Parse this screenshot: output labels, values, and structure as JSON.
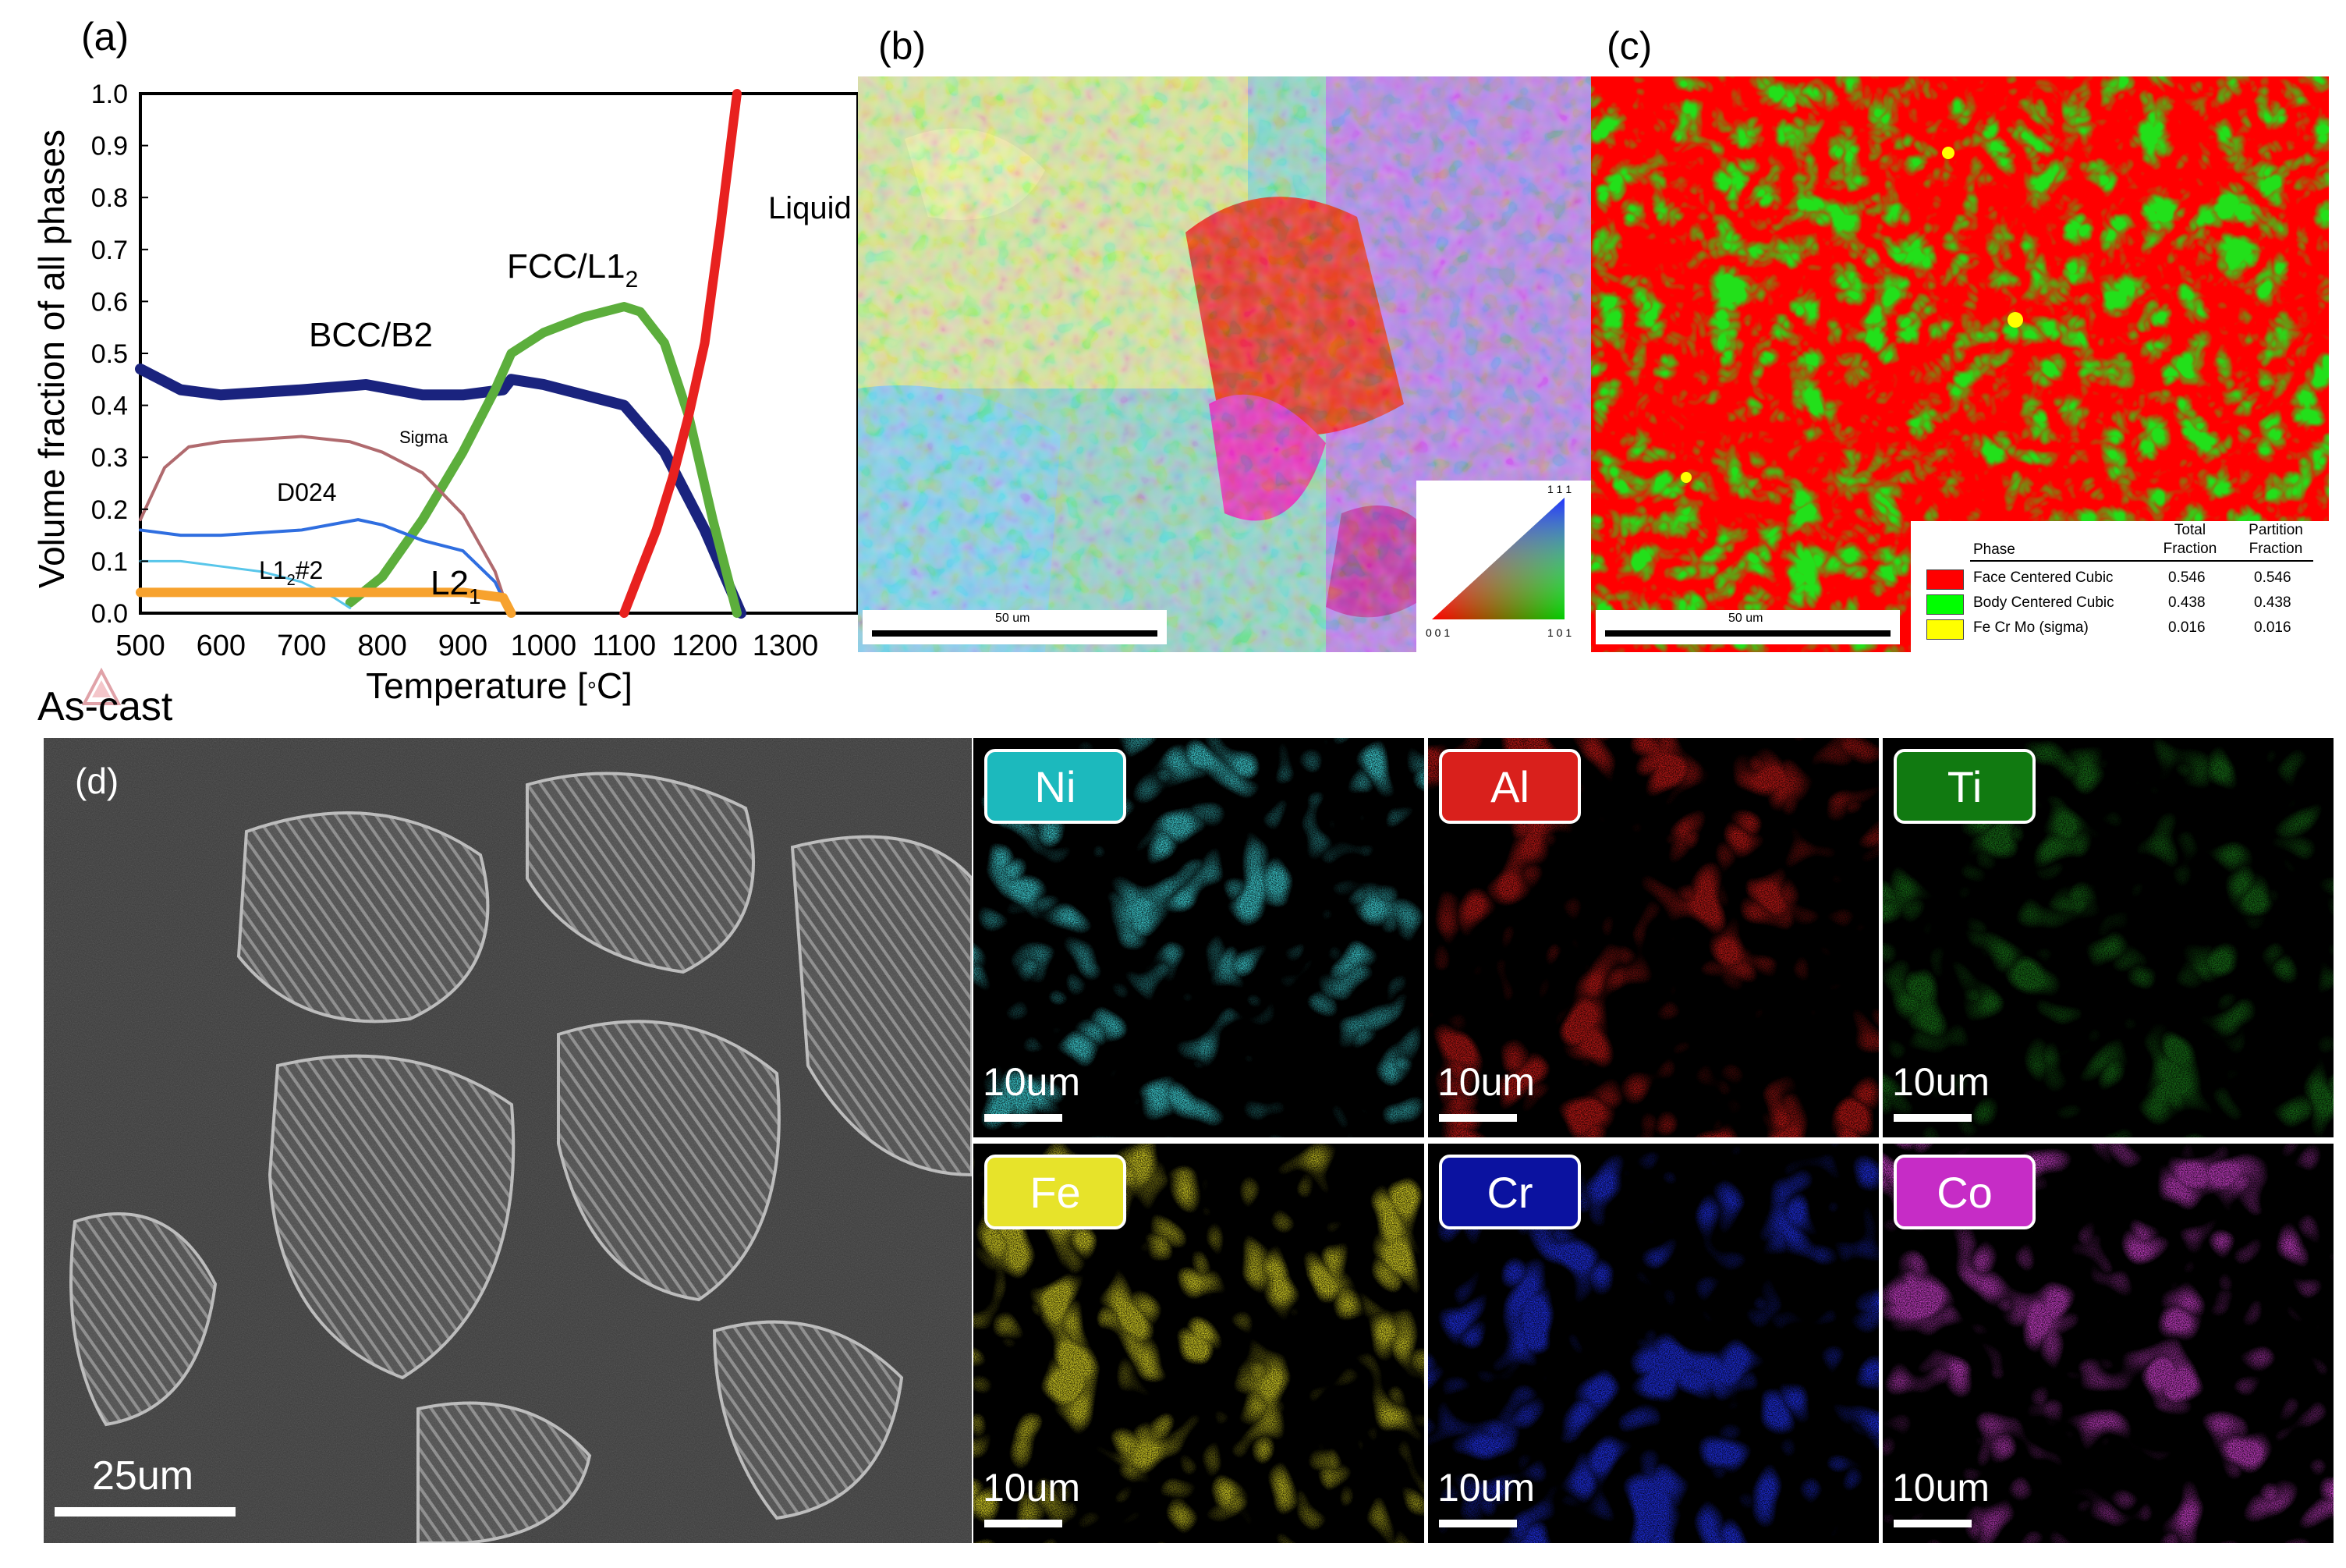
{
  "panel_a": {
    "label": "(a)",
    "chart_data": {
      "type": "line",
      "xlabel": "Temperature [°C]",
      "ylabel": "Volume fraction of all phases",
      "xlim": [
        500,
        1390
      ],
      "ylim": [
        0,
        1.0
      ],
      "xticks": [
        "500",
        "600",
        "700",
        "800",
        "900",
        "1000",
        "1100",
        "1200",
        "1300"
      ],
      "yticks": [
        "0.0",
        "0.1",
        "0.2",
        "0.3",
        "0.4",
        "0.5",
        "0.6",
        "0.7",
        "0.8",
        "0.9",
        "1.0"
      ],
      "series": [
        {
          "name": "BCC/B2",
          "color": "#1a237e",
          "x": [
            500,
            550,
            600,
            700,
            780,
            850,
            900,
            950,
            960,
            1000,
            1050,
            1100,
            1150,
            1200,
            1245
          ],
          "y": [
            0.47,
            0.43,
            0.42,
            0.43,
            0.44,
            0.42,
            0.42,
            0.43,
            0.45,
            0.44,
            0.42,
            0.4,
            0.31,
            0.16,
            0.0
          ]
        },
        {
          "name": "FCC/L1₂",
          "color": "#5cae3c",
          "x": [
            760,
            800,
            850,
            900,
            940,
            960,
            1000,
            1050,
            1100,
            1120,
            1150,
            1180,
            1210,
            1240
          ],
          "y": [
            0.02,
            0.07,
            0.18,
            0.31,
            0.43,
            0.5,
            0.54,
            0.57,
            0.59,
            0.58,
            0.52,
            0.38,
            0.18,
            0.0
          ]
        },
        {
          "name": "Liquid",
          "color": "#e8211f",
          "x": [
            1100,
            1120,
            1140,
            1160,
            1180,
            1200,
            1220,
            1240
          ],
          "y": [
            0.0,
            0.08,
            0.16,
            0.26,
            0.38,
            0.52,
            0.75,
            1.0
          ]
        },
        {
          "name": "Sigma",
          "color": "#b06a6e",
          "x": [
            500,
            530,
            560,
            600,
            700,
            760,
            800,
            850,
            900,
            940,
            955
          ],
          "y": [
            0.18,
            0.28,
            0.32,
            0.33,
            0.34,
            0.33,
            0.31,
            0.27,
            0.19,
            0.08,
            0.01
          ]
        },
        {
          "name": "D024",
          "color": "#2f6ee0",
          "x": [
            500,
            550,
            600,
            700,
            770,
            800,
            850,
            900,
            940,
            955
          ],
          "y": [
            0.16,
            0.15,
            0.15,
            0.16,
            0.18,
            0.17,
            0.14,
            0.12,
            0.06,
            0.01
          ]
        },
        {
          "name": "L1₂#2",
          "color": "#58c6ea",
          "x": [
            500,
            550,
            600,
            650,
            700,
            740,
            760
          ],
          "y": [
            0.1,
            0.1,
            0.09,
            0.08,
            0.06,
            0.03,
            0.01
          ]
        },
        {
          "name": "L2₁",
          "color": "#f7a22e",
          "x": [
            500,
            600,
            700,
            800,
            900,
            950,
            960
          ],
          "y": [
            0.04,
            0.04,
            0.04,
            0.04,
            0.04,
            0.03,
            0.0
          ]
        }
      ],
      "annotations": {
        "bcc": "BCC/B2",
        "fcc": "FCC/L1",
        "fcc_sub": "2",
        "liquid": "Liquid",
        "sigma": "Sigma",
        "d024": "D024",
        "l12": "L1",
        "l12_sub": "2",
        "l12_suffix": "#2",
        "l21": "L2",
        "l21_sub": "1"
      }
    }
  },
  "panel_b": {
    "label": "(b)",
    "scale_text": "50 um",
    "ipf": {
      "top": "1 1 1",
      "left": "0 0 1",
      "right": "1 0 1"
    }
  },
  "panel_c": {
    "label": "(c)",
    "scale_text": "50 um",
    "legend": {
      "col_phase": "Phase",
      "col_total": [
        "Total",
        "Fraction"
      ],
      "col_partition": [
        "Partition",
        "Fraction"
      ],
      "rows": [
        {
          "name": "Face Centered Cubic",
          "color": "#ff0000",
          "total": "0.546",
          "partition": "0.546"
        },
        {
          "name": "Body Centered Cubic",
          "color": "#00ff00",
          "total": "0.438",
          "partition": "0.438"
        },
        {
          "name": "Fe Cr Mo (sigma)",
          "color": "#ffff00",
          "total": "0.016",
          "partition": "0.016"
        }
      ]
    }
  },
  "panel_d": {
    "label": "(d)",
    "heading": "As-cast",
    "sem_scale": "25um",
    "maps": [
      {
        "element": "Ni",
        "scale": "10um",
        "bg": "#19a3a9",
        "spot": "#58e1e6",
        "badge": "#1cb9bd"
      },
      {
        "element": "Al",
        "scale": "10um",
        "bg": "#7a0a0a",
        "spot": "#e0201d",
        "badge": "#d9201c"
      },
      {
        "element": "Ti",
        "scale": "10um",
        "bg": "#0a3a0a",
        "spot": "#1f8a1f",
        "badge": "#117a11"
      },
      {
        "element": "Fe",
        "scale": "10um",
        "bg": "#a8a21a",
        "spot": "#e8e22c",
        "badge": "#e7e32a"
      },
      {
        "element": "Cr",
        "scale": "10um",
        "bg": "#0c17a8",
        "spot": "#2a3cf2",
        "badge": "#0b12a0"
      },
      {
        "element": "Co",
        "scale": "10um",
        "bg": "#9a1f9a",
        "spot": "#d650d6",
        "badge": "#c62cc6"
      }
    ]
  }
}
